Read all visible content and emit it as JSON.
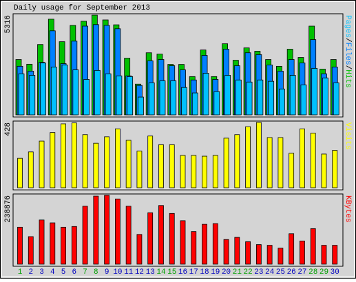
{
  "title": "Daily usage for September 2013",
  "chart_data": [
    {
      "type": "bar",
      "ylim": [
        0,
        5316
      ],
      "yticks": [
        5316
      ],
      "legend_separator": "/",
      "series": [
        {
          "name": "Hits",
          "color": "#00c000",
          "values": [
            2950,
            2700,
            3750,
            5100,
            3900,
            4770,
            4990,
            5316,
            5060,
            4800,
            3020,
            1640,
            3310,
            3240,
            2690,
            2690,
            2040,
            3460,
            2040,
            3790,
            2910,
            3570,
            3390,
            2950,
            2590,
            3500,
            3060,
            4730,
            2440,
            2950
          ]
        },
        {
          "name": "Files",
          "color": "#0080ff",
          "values": [
            2590,
            2330,
            2800,
            4480,
            2730,
            3930,
            4730,
            4810,
            4770,
            4590,
            2080,
            1570,
            2880,
            2950,
            2620,
            2400,
            1860,
            3170,
            1890,
            3500,
            2620,
            3310,
            3210,
            2660,
            2330,
            2950,
            2770,
            4010,
            2190,
            2550
          ]
        },
        {
          "name": "Pages",
          "color": "#00c0ff",
          "values": [
            2190,
            2110,
            2770,
            2550,
            2660,
            2400,
            1890,
            2370,
            2190,
            2080,
            2040,
            950,
            1710,
            1820,
            1820,
            1460,
            1170,
            2220,
            1240,
            2110,
            1860,
            1750,
            1860,
            1790,
            1380,
            2110,
            1600,
            2480,
            1970,
            1710
          ]
        }
      ]
    },
    {
      "type": "bar",
      "ylim": [
        0,
        428
      ],
      "yticks": [
        428
      ],
      "series": [
        {
          "name": "Visits",
          "color": "#ffff00",
          "values": [
            193,
            235,
            306,
            362,
            419,
            425,
            348,
            292,
            334,
            386,
            311,
            240,
            339,
            282,
            282,
            212,
            212,
            207,
            212,
            325,
            348,
            400,
            428,
            329,
            329,
            226,
            386,
            358,
            221,
            245
          ]
        }
      ]
    },
    {
      "type": "bar",
      "ylim": [
        0,
        238876
      ],
      "yticks": [
        238876
      ],
      "categories": [
        "1",
        "2",
        "3",
        "4",
        "5",
        "6",
        "7",
        "8",
        "9",
        "10",
        "11",
        "12",
        "13",
        "14",
        "15",
        "16",
        "17",
        "18",
        "19",
        "20",
        "21",
        "22",
        "23",
        "24",
        "25",
        "26",
        "27",
        "28",
        "29",
        "30"
      ],
      "category_colors": [
        "#00a000",
        "#0000c0",
        "#0000c0",
        "#0000c0",
        "#0000c0",
        "#0000c0",
        "#00a000",
        "#00a000",
        "#0000c0",
        "#0000c0",
        "#0000c0",
        "#0000c0",
        "#0000c0",
        "#00a000",
        "#00a000",
        "#0000c0",
        "#0000c0",
        "#0000c0",
        "#0000c0",
        "#0000c0",
        "#00a000",
        "#00a000",
        "#0000c0",
        "#0000c0",
        "#0000c0",
        "#0000c0",
        "#0000c0",
        "#00a000",
        "#00a000",
        "#0000c0"
      ],
      "series": [
        {
          "name": "KBytes",
          "color": "#ff0000",
          "values": [
            128200,
            95500,
            153300,
            143300,
            128200,
            130700,
            201100,
            236300,
            238876,
            226300,
            201100,
            103100,
            178500,
            203600,
            176000,
            150800,
            113100,
            138300,
            140800,
            85500,
            93000,
            77900,
            67900,
            65400,
            55300,
            105600,
            80400,
            123200,
            65400,
            65400
          ]
        }
      ]
    }
  ]
}
